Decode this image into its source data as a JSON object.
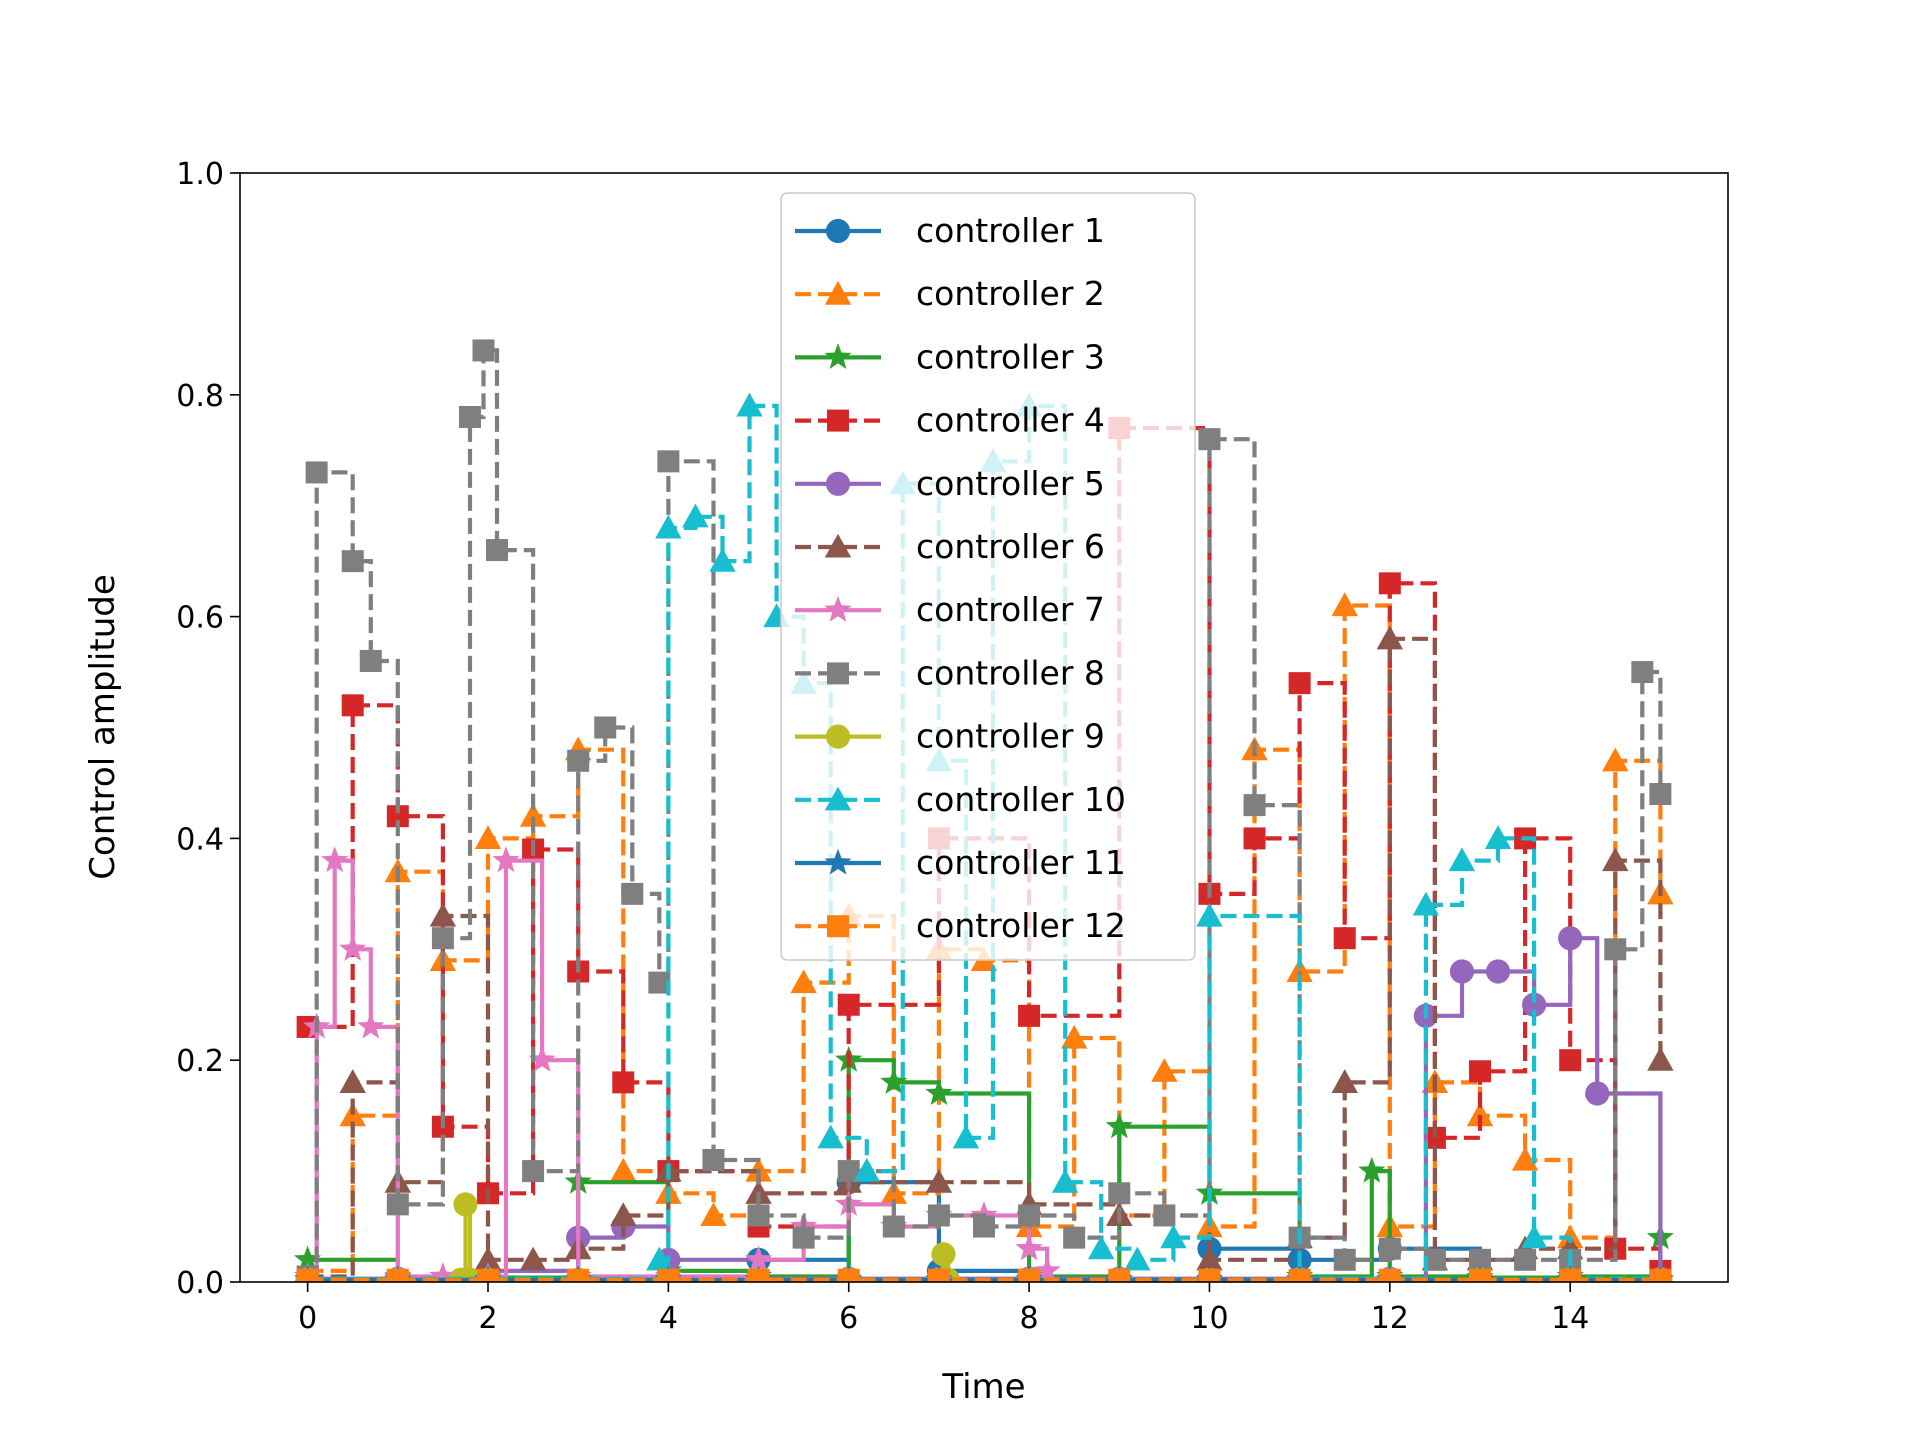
{
  "chart_data": {
    "type": "line",
    "title": "",
    "xlabel": "Time",
    "ylabel": "Control amplitude",
    "xlim": [
      -0.75,
      15.75
    ],
    "ylim": [
      0.0,
      1.0
    ],
    "grid": false,
    "legend_position": "upper center",
    "x_ticks": [
      "0",
      "2",
      "4",
      "6",
      "8",
      "10",
      "12",
      "14"
    ],
    "x_tick_values": [
      0,
      2,
      4,
      6,
      8,
      10,
      12,
      14
    ],
    "y_ticks": [
      "0.0",
      "0.2",
      "0.4",
      "0.6",
      "0.8",
      "1.0"
    ],
    "y_tick_values": [
      0.0,
      0.2,
      0.4,
      0.6,
      0.8,
      1.0
    ],
    "series": [
      {
        "name": "controller 1",
        "color": "#1f77b4",
        "marker": "circle",
        "dash": "solid",
        "x": [
          0,
          1,
          2,
          3,
          4,
          5,
          6,
          7,
          8,
          9,
          10,
          11,
          12,
          13,
          14,
          15
        ],
        "y": [
          0.002,
          0.002,
          0.003,
          0.002,
          0.004,
          0.02,
          0.09,
          0.01,
          0.003,
          0.002,
          0.03,
          0.02,
          0.03,
          0.002,
          0.003,
          0.002
        ]
      },
      {
        "name": "controller 2",
        "color": "#ff7f0e",
        "marker": "triangle",
        "dash": "dashed",
        "x": [
          0,
          0.5,
          1,
          1.5,
          2,
          2.5,
          3,
          3.5,
          4,
          4.5,
          5,
          5.5,
          6,
          6.5,
          7,
          7.5,
          8,
          8.5,
          9,
          9.5,
          10,
          10.5,
          11,
          11.5,
          12,
          12.5,
          13,
          13.5,
          14,
          14.5,
          15
        ],
        "y": [
          0.01,
          0.15,
          0.37,
          0.29,
          0.4,
          0.42,
          0.48,
          0.1,
          0.08,
          0.06,
          0.1,
          0.27,
          0.33,
          0.08,
          0.3,
          0.29,
          0.05,
          0.22,
          0.06,
          0.19,
          0.05,
          0.48,
          0.28,
          0.61,
          0.05,
          0.18,
          0.15,
          0.11,
          0.04,
          0.47,
          0.35
        ]
      },
      {
        "name": "controller 3",
        "color": "#2ca02c",
        "marker": "star",
        "dash": "solid",
        "x": [
          0,
          1,
          2,
          3,
          4,
          5,
          6,
          6.5,
          7,
          8,
          9,
          10,
          11,
          11.8,
          12,
          13,
          14,
          15
        ],
        "y": [
          0.02,
          0.004,
          0.004,
          0.09,
          0.01,
          0.005,
          0.2,
          0.18,
          0.17,
          0.005,
          0.14,
          0.08,
          0.005,
          0.1,
          0.005,
          0.004,
          0.005,
          0.04
        ]
      },
      {
        "name": "controller 4",
        "color": "#d62728",
        "marker": "square",
        "dash": "dashed",
        "x": [
          0,
          0.5,
          1,
          1.5,
          2,
          2.5,
          3,
          3.5,
          4,
          5,
          6,
          7,
          8,
          9,
          10,
          10.5,
          11,
          11.5,
          12,
          12.5,
          13,
          13.5,
          14,
          14.5,
          15
        ],
        "y": [
          0.23,
          0.52,
          0.42,
          0.14,
          0.08,
          0.39,
          0.28,
          0.18,
          0.1,
          0.05,
          0.25,
          0.4,
          0.24,
          0.77,
          0.35,
          0.4,
          0.54,
          0.31,
          0.63,
          0.13,
          0.19,
          0.4,
          0.2,
          0.03,
          0.01
        ]
      },
      {
        "name": "controller 5",
        "color": "#9467bd",
        "marker": "circle",
        "dash": "solid",
        "x": [
          0,
          1,
          2,
          3,
          3.5,
          4,
          5,
          6,
          7,
          8,
          9,
          10,
          11,
          12,
          12.4,
          12.8,
          13.2,
          13.6,
          14,
          14.3,
          15
        ],
        "y": [
          0.003,
          0.003,
          0.01,
          0.04,
          0.05,
          0.02,
          0.003,
          0.003,
          0.003,
          0.003,
          0.003,
          0.003,
          0.003,
          0.003,
          0.24,
          0.28,
          0.28,
          0.25,
          0.31,
          0.17,
          0.003
        ]
      },
      {
        "name": "controller 6",
        "color": "#8c564b",
        "marker": "triangle",
        "dash": "dashed",
        "x": [
          0,
          0.5,
          1,
          1.5,
          2,
          2.5,
          3,
          3.5,
          4,
          5,
          6,
          7,
          8,
          9,
          10,
          11,
          11.5,
          12,
          12.5,
          13,
          13.5,
          14,
          14.5,
          15
        ],
        "y": [
          0.005,
          0.18,
          0.09,
          0.33,
          0.02,
          0.02,
          0.03,
          0.06,
          0.1,
          0.08,
          0.09,
          0.09,
          0.07,
          0.06,
          0.02,
          0.04,
          0.18,
          0.58,
          0.02,
          0.02,
          0.03,
          0.03,
          0.38,
          0.2
        ]
      },
      {
        "name": "controller 7",
        "color": "#e377c2",
        "marker": "star",
        "dash": "solid",
        "x": [
          0,
          0.1,
          0.3,
          0.5,
          0.7,
          1,
          1.5,
          2,
          2.2,
          2.6,
          3,
          4,
          5,
          5.5,
          6,
          6.5,
          7,
          7.5,
          8,
          8.2
        ],
        "y": [
          0.005,
          0.23,
          0.38,
          0.3,
          0.23,
          0.005,
          0.005,
          0.005,
          0.38,
          0.2,
          0.005,
          0.005,
          0.02,
          0.05,
          0.07,
          0.05,
          0.06,
          0.06,
          0.03,
          0.01
        ]
      },
      {
        "name": "controller 8",
        "color": "#7f7f7f",
        "marker": "square",
        "dash": "dashed",
        "x": [
          0,
          0.1,
          0.5,
          0.7,
          1,
          1.5,
          1.8,
          1.95,
          2.1,
          2.5,
          3,
          3.3,
          3.6,
          3.9,
          4,
          4.5,
          5,
          5.5,
          6,
          6.5,
          7,
          7.5,
          8,
          8.5,
          9,
          9.5,
          10,
          10.5,
          11,
          11.5,
          12,
          12.5,
          13,
          13.5,
          14,
          14.5,
          14.8,
          15
        ],
        "y": [
          0.005,
          0.73,
          0.65,
          0.56,
          0.07,
          0.31,
          0.78,
          0.84,
          0.66,
          0.1,
          0.47,
          0.5,
          0.35,
          0.27,
          0.74,
          0.11,
          0.06,
          0.04,
          0.1,
          0.05,
          0.06,
          0.05,
          0.06,
          0.04,
          0.08,
          0.06,
          0.76,
          0.43,
          0.04,
          0.02,
          0.03,
          0.02,
          0.02,
          0.02,
          0.02,
          0.3,
          0.55,
          0.44
        ]
      },
      {
        "name": "controller 9",
        "color": "#bcbd22",
        "marker": "circle",
        "dash": "solid",
        "x": [
          0,
          1,
          1.7,
          1.75,
          1.8,
          2,
          3,
          4,
          5,
          6,
          7,
          7.05,
          7.1,
          8,
          9,
          10,
          11,
          12,
          13,
          14,
          15
        ],
        "y": [
          0.002,
          0.002,
          0.002,
          0.07,
          0.002,
          0.002,
          0.002,
          0.002,
          0.002,
          0.002,
          0.002,
          0.025,
          0.002,
          0.002,
          0.002,
          0.002,
          0.002,
          0.002,
          0.002,
          0.002,
          0.002
        ]
      },
      {
        "name": "controller 10",
        "color": "#17becf",
        "marker": "triangle",
        "dash": "dashed",
        "x": [
          0,
          1,
          2,
          3,
          3.9,
          4,
          4.3,
          4.6,
          4.9,
          5.2,
          5.5,
          5.8,
          6.2,
          6.6,
          7,
          7.3,
          7.6,
          8,
          8.4,
          8.8,
          9.2,
          9.6,
          10,
          11,
          12,
          12.4,
          12.8,
          13.2,
          13.6,
          14,
          15
        ],
        "y": [
          0.003,
          0.003,
          0.003,
          0.003,
          0.02,
          0.68,
          0.69,
          0.65,
          0.79,
          0.6,
          0.54,
          0.13,
          0.1,
          0.72,
          0.47,
          0.13,
          0.74,
          0.79,
          0.09,
          0.03,
          0.02,
          0.04,
          0.33,
          0.003,
          0.003,
          0.34,
          0.38,
          0.4,
          0.04,
          0.003,
          0.003
        ]
      },
      {
        "name": "controller 11",
        "color": "#1f77b4",
        "marker": "star",
        "dash": "solid",
        "x": [
          0,
          1,
          2,
          3,
          4,
          5,
          6,
          7,
          8,
          9,
          10,
          11,
          12,
          13,
          14,
          15
        ],
        "y": [
          0.002,
          0.002,
          0.002,
          0.002,
          0.002,
          0.002,
          0.002,
          0.002,
          0.002,
          0.002,
          0.002,
          0.002,
          0.002,
          0.002,
          0.002,
          0.002
        ]
      },
      {
        "name": "controller 12",
        "color": "#ff7f0e",
        "marker": "square",
        "dash": "dashed",
        "x": [
          0,
          1,
          2,
          3,
          4,
          5,
          6,
          7,
          8,
          9,
          10,
          11,
          12,
          13,
          14,
          15
        ],
        "y": [
          0.002,
          0.002,
          0.002,
          0.002,
          0.002,
          0.002,
          0.002,
          0.002,
          0.002,
          0.002,
          0.002,
          0.002,
          0.002,
          0.002,
          0.002,
          0.002
        ]
      }
    ]
  }
}
